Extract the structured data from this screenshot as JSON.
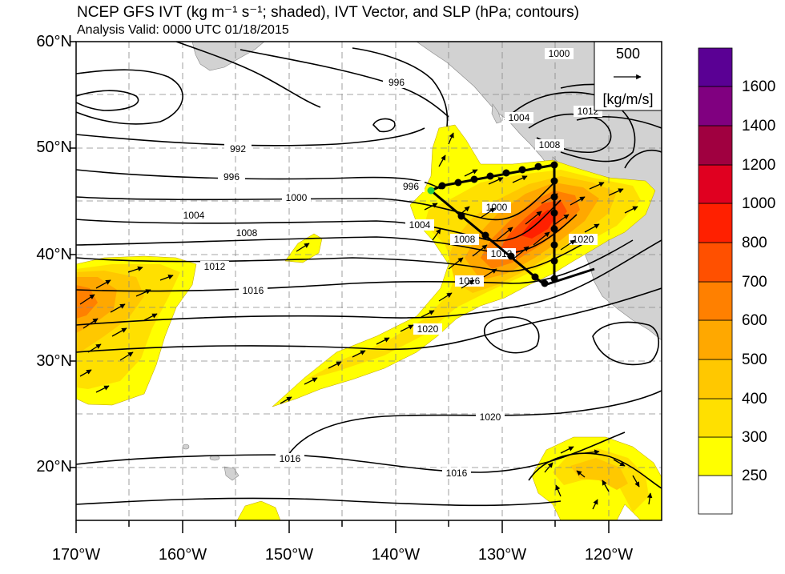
{
  "header": {
    "title": "NCEP GFS IVT (kg m⁻¹ s⁻¹; shaded), IVT Vector, and SLP (hPa; contours)",
    "subtitle": "Analysis Valid: 0000 UTC 01/18/2015"
  },
  "map": {
    "lat_labels": [
      "60°N",
      "50°N",
      "40°N",
      "30°N",
      "20°N"
    ],
    "lon_labels": [
      "170°W",
      "160°W",
      "150°W",
      "140°W",
      "130°W",
      "120°W"
    ],
    "lon_range": [
      "170°W",
      "115°W"
    ],
    "lat_range": [
      "15°N",
      "60°N"
    ],
    "gridlines": "dashed",
    "land_color": "#d2d2d2",
    "slp_contour_labels": [
      "992",
      "996",
      "996",
      "996",
      "1000",
      "1000",
      "1000",
      "1004",
      "1004",
      "1004",
      "1008",
      "1008",
      "1008",
      "1012",
      "1012",
      "1012",
      "1016",
      "1016",
      "1016",
      "1016",
      "1020",
      "1020",
      "1020"
    ]
  },
  "vector_reference": {
    "value": "500",
    "unit": "[kg/m/s]"
  },
  "colorbar": {
    "levels": [
      "250",
      "300",
      "400",
      "500",
      "600",
      "700",
      "800",
      "1000",
      "1200",
      "1400",
      "1600"
    ],
    "colors": [
      "#ffffff",
      "#ffff00",
      "#ffe000",
      "#ffc800",
      "#ffa800",
      "#ff8000",
      "#ff5000",
      "#ff2000",
      "#e00020",
      "#a00040",
      "#800080",
      "#5a0094"
    ]
  }
}
